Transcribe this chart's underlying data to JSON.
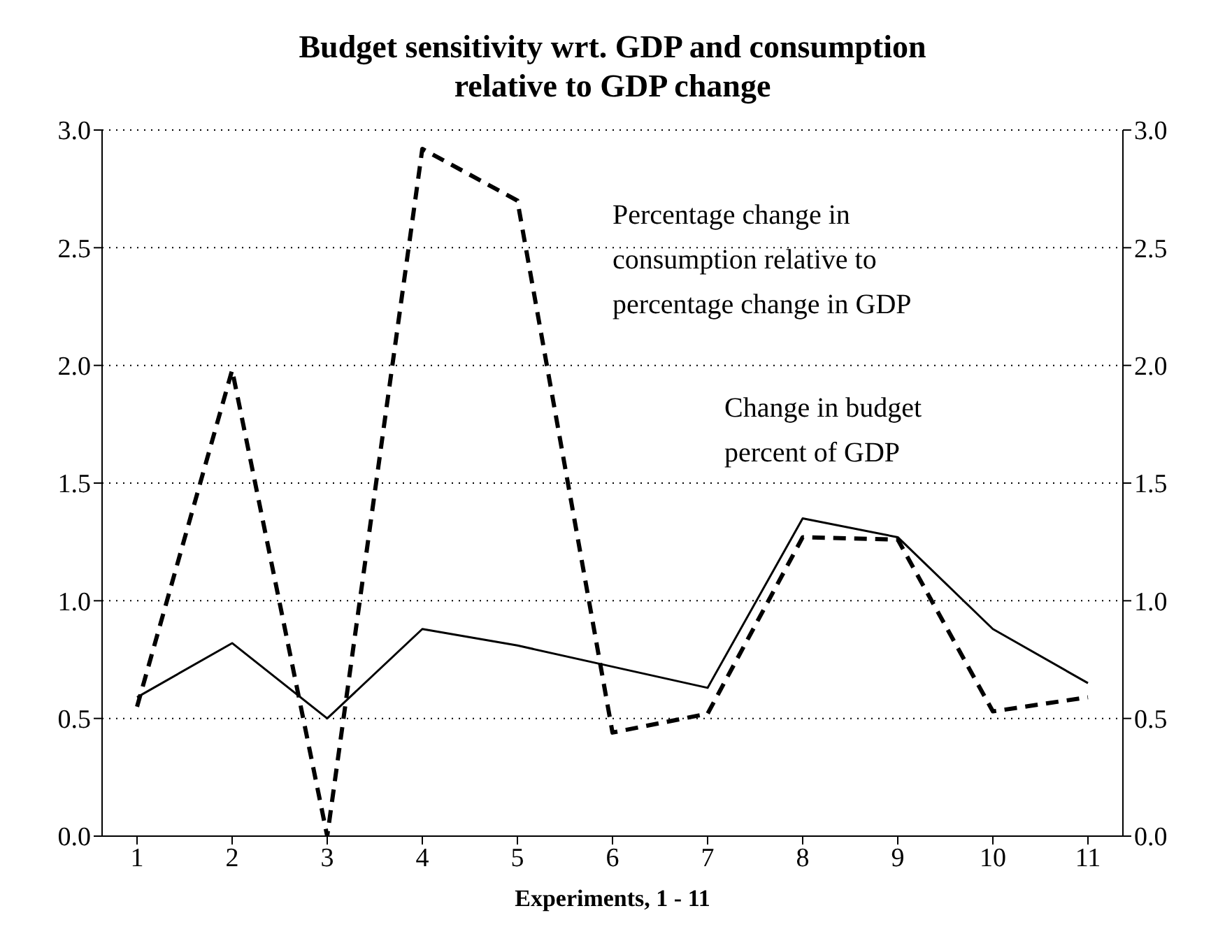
{
  "chart_data": {
    "type": "line",
    "title": "Budget sensitivity wrt. GDP and consumption relative to GDP change",
    "xlabel": "Experiments, 1 - 11",
    "categories": [
      "1",
      "2",
      "3",
      "4",
      "5",
      "6",
      "7",
      "8",
      "9",
      "10",
      "11"
    ],
    "series": [
      {
        "name": "Percentage change in consumption relative to percentage change in GDP",
        "color": "#000000",
        "line_style": "dashed",
        "values": [
          0.55,
          1.98,
          0.0,
          2.92,
          2.7,
          0.44,
          0.52,
          1.27,
          1.26,
          0.53,
          0.59
        ]
      },
      {
        "name": "Change in budget percent of GDP",
        "color": "#000000",
        "line_style": "solid",
        "values": [
          0.59,
          0.82,
          0.5,
          0.88,
          0.81,
          0.72,
          0.63,
          1.35,
          1.27,
          0.88,
          0.65
        ]
      }
    ],
    "ylim": [
      0,
      3
    ],
    "yticks": [
      {
        "value": 0,
        "label": "0.0"
      },
      {
        "value": 0.5,
        "label": "0.5"
      },
      {
        "value": 1,
        "label": "1.0"
      },
      {
        "value": 1.5,
        "label": "1.5"
      },
      {
        "value": 2,
        "label": "2.0"
      },
      {
        "value": 2.5,
        "label": "2.5"
      },
      {
        "value": 3,
        "label": "3.0"
      }
    ],
    "y2lim": [
      0,
      3
    ],
    "y2ticks": [
      {
        "value": 0,
        "label": "0.0"
      },
      {
        "value": 0.5,
        "label": "0.5"
      },
      {
        "value": 1,
        "label": "1.0"
      },
      {
        "value": 1.5,
        "label": "1.5"
      },
      {
        "value": 2,
        "label": "2.0"
      },
      {
        "value": 2.5,
        "label": "2.5"
      },
      {
        "value": 3,
        "label": "3.0"
      }
    ],
    "grid": "y",
    "legend": false,
    "marker": "none"
  }
}
